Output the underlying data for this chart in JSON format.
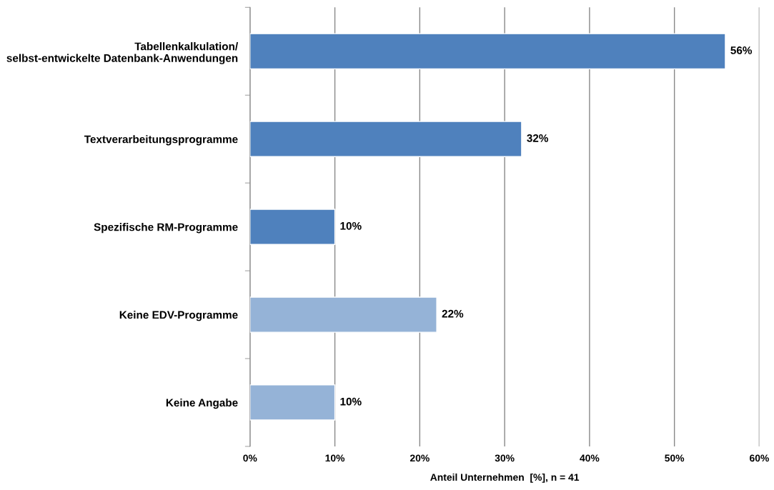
{
  "chart_data": {
    "type": "bar",
    "orientation": "horizontal",
    "xlabel": "Anteil Unternehmen  [%], n = 41",
    "categories": [
      "Tabellenkalkulation/\nselbst-entwickelte Datenbank-Anwendungen",
      "Textverarbeitungsprogramme",
      "Spezifische RM-Programme",
      "Keine EDV-Programme",
      "Keine Angabe"
    ],
    "values": [
      56,
      32,
      10,
      22,
      10
    ],
    "colors": [
      "#4f81bd",
      "#4f81bd",
      "#4f81bd",
      "#95b3d7",
      "#95b3d7"
    ],
    "value_labels": [
      "56%",
      "32%",
      "10%",
      "22%",
      "10%"
    ],
    "xlim": [
      0,
      60
    ],
    "xticks": [
      {
        "value": 0,
        "label": "0%"
      },
      {
        "value": 10,
        "label": "10%"
      },
      {
        "value": 20,
        "label": "20%"
      },
      {
        "value": 30,
        "label": "30%"
      },
      {
        "value": 40,
        "label": "40%"
      },
      {
        "value": 50,
        "label": "50%"
      },
      {
        "value": 60,
        "label": "60%"
      }
    ],
    "grid": "x",
    "legend": false
  }
}
